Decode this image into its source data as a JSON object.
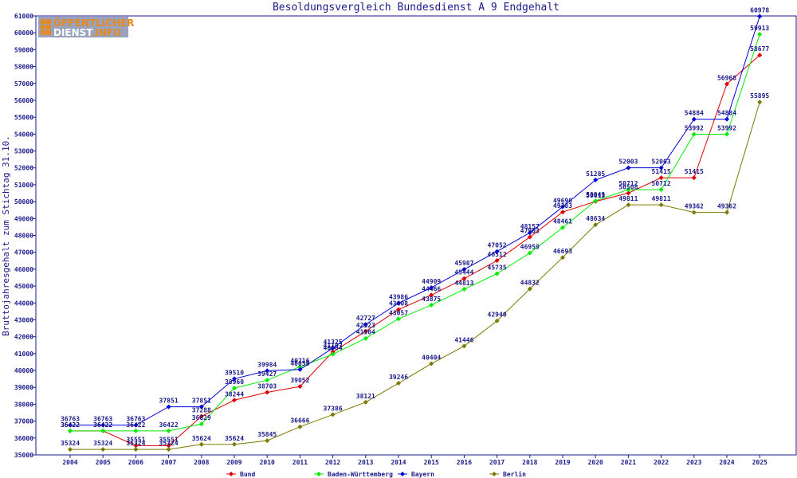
{
  "chart_data": {
    "type": "line",
    "title": "Besoldungsvergleich Bundesdienst A 9 Endgehalt",
    "ylabel": "Bruttojahresgehalt zum Stichtag 31.10.",
    "xlabel": "",
    "ylim": [
      35000,
      61000
    ],
    "ystep": 1000,
    "grid": false,
    "legend_position": "bottom",
    "categories": [
      "2004",
      "2005",
      "2006",
      "2007",
      "2008",
      "2009",
      "2010",
      "2011",
      "2012",
      "2013",
      "2014",
      "2015",
      "2016",
      "2017",
      "2018",
      "2019",
      "2020",
      "2021",
      "2022",
      "2023",
      "2024",
      "2025"
    ],
    "series": [
      {
        "name": "Bund",
        "color": "#e00000",
        "values": [
          36422,
          36422,
          35551,
          35551,
          37288,
          38244,
          38703,
          39052,
          41103,
          42323,
          43608,
          44466,
          45444,
          46512,
          47903,
          49383,
          50013,
          50508,
          51415,
          51415,
          56968,
          58677
        ]
      },
      {
        "name": "Baden-Württemberg",
        "color": "#00ee00",
        "values": [
          36422,
          36422,
          36422,
          36422,
          36829,
          38960,
          39427,
          40216,
          40964,
          41904,
          43057,
          43875,
          44813,
          45735,
          46959,
          48461,
          50049,
          50712,
          50712,
          53992,
          53992,
          59913
        ]
      },
      {
        "name": "Bayern",
        "color": "#0000dd",
        "values": [
          36763,
          36763,
          36763,
          37851,
          37851,
          39510,
          39984,
          40059,
          41325,
          42727,
          43986,
          44909,
          45987,
          47052,
          48157,
          49696,
          51285,
          52003,
          52003,
          54884,
          54884,
          60978
        ]
      },
      {
        "name": "Berlin",
        "color": "#7a7a00",
        "values": [
          35324,
          35324,
          35324,
          35324,
          35624,
          35624,
          35845,
          36666,
          37386,
          38121,
          39246,
          40404,
          41446,
          42940,
          44832,
          46693,
          48634,
          49811,
          49811,
          49362,
          49362,
          55895
        ]
      }
    ]
  },
  "logo": {
    "line1": "ÖFFENTLICHER",
    "line2_a": "DIENST",
    "line2_b": ".INFO"
  }
}
